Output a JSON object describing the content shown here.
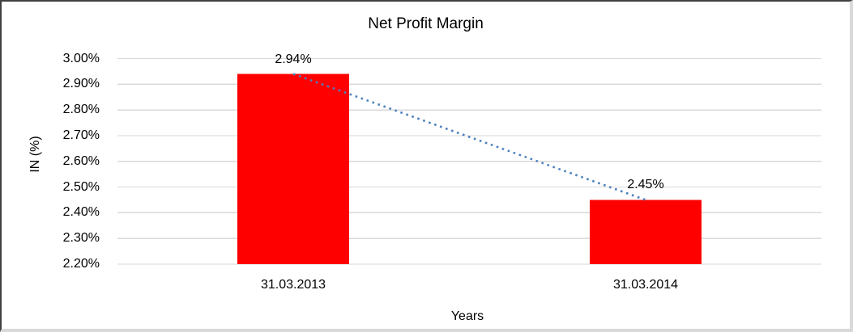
{
  "chart_data": {
    "type": "bar",
    "title": "Net Profit Margin",
    "ylabel": "IN (%)",
    "xlabel": "Years",
    "categories": [
      "31.03.2013",
      "31.03.2014"
    ],
    "values": [
      2.94,
      2.45
    ],
    "data_labels": [
      "2.94%",
      "2.45%"
    ],
    "y_ticks": [
      "3.00%",
      "2.90%",
      "2.80%",
      "2.70%",
      "2.60%",
      "2.50%",
      "2.40%",
      "2.30%",
      "2.20%"
    ],
    "ylim": [
      2.2,
      3.0
    ],
    "y_tick_step": 0.1,
    "grid": true,
    "legend": "none",
    "trendline": {
      "type": "linear",
      "style": "dotted",
      "connects_values": [
        2.94,
        2.45
      ]
    },
    "colors": {
      "bar": "#FF0000",
      "trendline": "#4E81BD",
      "gridline": "#D9D9D9",
      "text": "#000000"
    }
  }
}
